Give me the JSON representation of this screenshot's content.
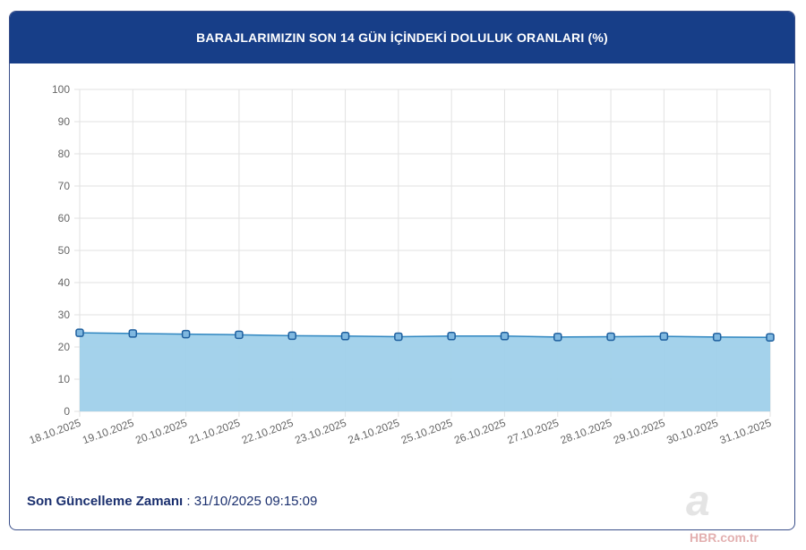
{
  "header": {
    "title": "BARAJLARIMIZIN SON 14 GÜN İÇİNDEKİ DOLULUK ORANLARI (%)"
  },
  "footer": {
    "label": "Son Güncelleme Zamanı",
    "separator": " : ",
    "value": "31/10/2025 09:15:09"
  },
  "watermark": {
    "letter": "a",
    "text": "HBR.com.tr"
  },
  "colors": {
    "header": "#173e88",
    "fill": "#9fd0ea",
    "line": "#2f86c0",
    "marker": "#1e5f9e"
  },
  "chart_data": {
    "type": "area",
    "title": "",
    "xlabel": "",
    "ylabel": "",
    "ylim": [
      0,
      100
    ],
    "yticks": [
      0,
      10,
      20,
      30,
      40,
      50,
      60,
      70,
      80,
      90,
      100
    ],
    "grid": true,
    "categories": [
      "18.10.2025",
      "19.10.2025",
      "20.10.2025",
      "21.10.2025",
      "22.10.2025",
      "23.10.2025",
      "24.10.2025",
      "25.10.2025",
      "26.10.2025",
      "27.10.2025",
      "28.10.2025",
      "29.10.2025",
      "30.10.2025",
      "31.10.2025"
    ],
    "values": [
      24.4,
      24.2,
      24.0,
      23.8,
      23.5,
      23.4,
      23.2,
      23.4,
      23.4,
      23.1,
      23.2,
      23.3,
      23.1,
      23.0
    ]
  }
}
